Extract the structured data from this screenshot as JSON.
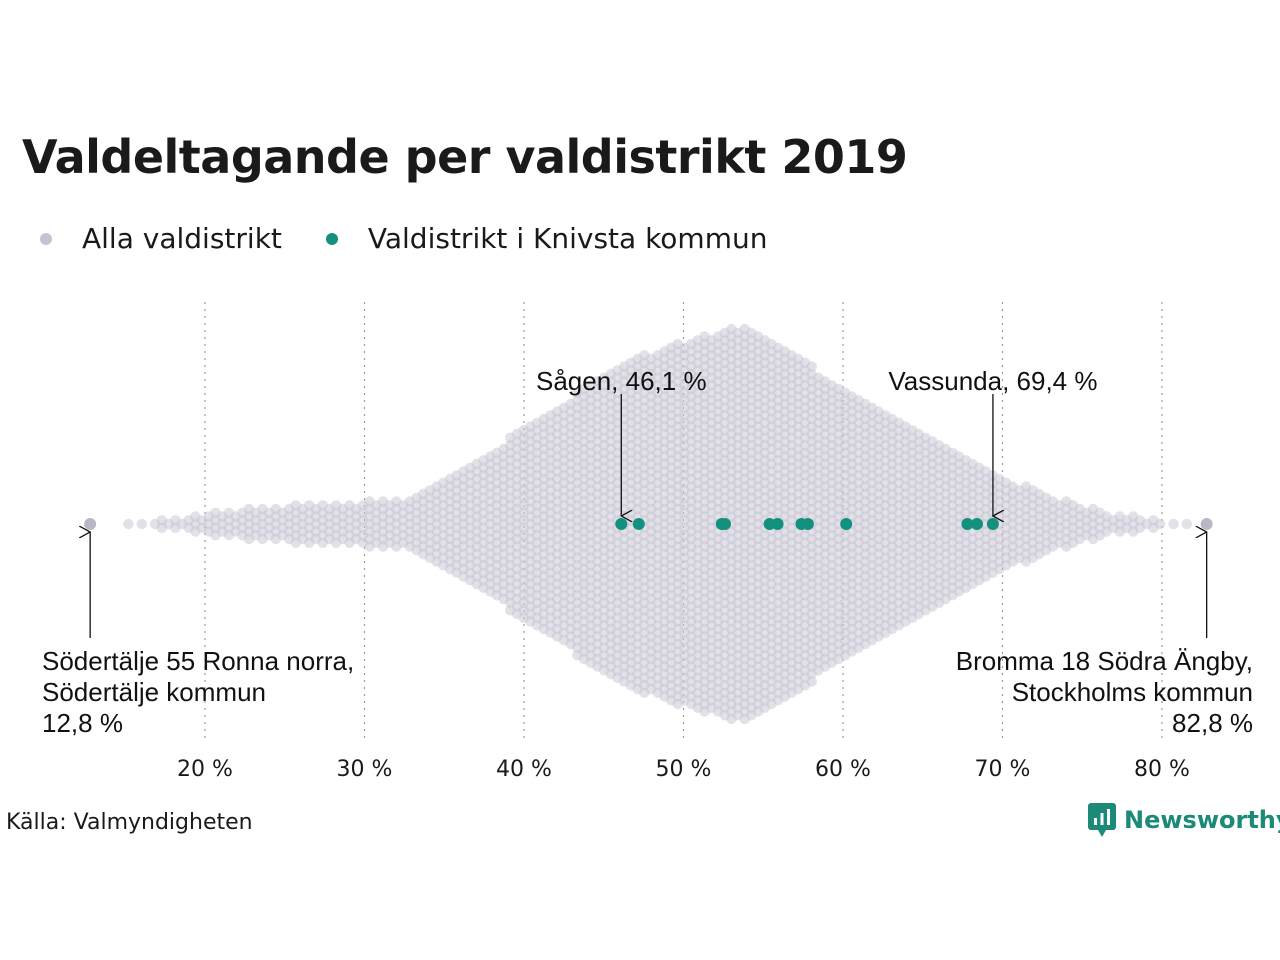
{
  "title": "Valdeltagande per valdistrikt 2019",
  "legend": [
    {
      "label": "Alla valdistrikt",
      "color": "#c5c3d2"
    },
    {
      "label": "Valdistrikt i Knivsta kommun",
      "color": "#14907f"
    }
  ],
  "source": "Källa: Valmyndigheten",
  "brand": "Newsworthy",
  "chart_data": {
    "type": "scatter",
    "subtype": "beeswarm",
    "title": "Valdeltagande per valdistrikt 2019",
    "xlim": [
      12,
      84
    ],
    "x_ticks": [
      20,
      30,
      40,
      50,
      60,
      70,
      80
    ],
    "x_tick_labels": [
      "20 %",
      "30 %",
      "40 %",
      "50 %",
      "60 %",
      "70 %",
      "80 %"
    ],
    "grid": "vertical dotted",
    "legend_position": "top-left",
    "series": [
      {
        "name": "Alla valdistrikt",
        "color": "#c5c3d2",
        "distribution": "approximately 6000 districts, roughly 15 % to 83 %, densest around 54 %",
        "extremes": [
          12.8,
          82.8
        ]
      },
      {
        "name": "Valdistrikt i Knivsta kommun",
        "color": "#14907f",
        "values": [
          46.1,
          47.2,
          52.4,
          52.6,
          55.4,
          55.9,
          57.4,
          57.8,
          60.2,
          67.8,
          68.4,
          69.4
        ]
      }
    ],
    "annotations": [
      {
        "x": 46.1,
        "label": "Sågen, 46,1 %",
        "position": "above"
      },
      {
        "x": 69.4,
        "label": "Vassunda, 69,4 %",
        "position": "above"
      },
      {
        "x": 12.8,
        "lines": [
          "Södertälje 55 Ronna norra,",
          "Södertälje kommun",
          "12,8 %"
        ],
        "position": "below-left"
      },
      {
        "x": 82.8,
        "lines": [
          "Bromma 18 Södra Ängby,",
          "Stockholms kommun",
          "82,8 %"
        ],
        "position": "below-right"
      }
    ]
  }
}
